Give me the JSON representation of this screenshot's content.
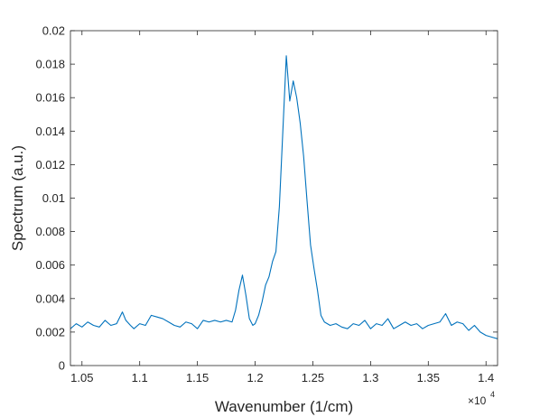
{
  "chart_data": {
    "type": "line",
    "title": "",
    "xlabel": "Wavenumber (1/cm)",
    "ylabel": "Spectrum (a.u.)",
    "x_exponent_base": "×10",
    "x_exponent_power": "4",
    "xlim": [
      1.04,
      1.41
    ],
    "ylim": [
      0,
      0.02
    ],
    "x_ticks": [
      1.05,
      1.1,
      1.15,
      1.2,
      1.25,
      1.3,
      1.35,
      1.4
    ],
    "x_tick_labels": [
      "1.05",
      "1.1",
      "1.15",
      "1.2",
      "1.25",
      "1.3",
      "1.35",
      "1.4"
    ],
    "y_ticks": [
      0,
      0.002,
      0.004,
      0.006,
      0.008,
      0.01,
      0.012,
      0.014,
      0.016,
      0.018,
      0.02
    ],
    "y_tick_labels": [
      "0",
      "0.002",
      "0.004",
      "0.006",
      "0.008",
      "0.01",
      "0.012",
      "0.014",
      "0.016",
      "0.018",
      "0.02"
    ],
    "grid": false,
    "line_color": "#0072BD",
    "series": [
      {
        "x": [
          1.04,
          1.045,
          1.05,
          1.055,
          1.06,
          1.065,
          1.07,
          1.075,
          1.08,
          1.085,
          1.088,
          1.092,
          1.095,
          1.1,
          1.105,
          1.11,
          1.115,
          1.12,
          1.125,
          1.13,
          1.135,
          1.14,
          1.145,
          1.15,
          1.155,
          1.16,
          1.165,
          1.17,
          1.175,
          1.18,
          1.183,
          1.186,
          1.189,
          1.192,
          1.195,
          1.198,
          1.2,
          1.203,
          1.206,
          1.209,
          1.212,
          1.215,
          1.218,
          1.221,
          1.224,
          1.227,
          1.23,
          1.233,
          1.236,
          1.239,
          1.242,
          1.245,
          1.248,
          1.251,
          1.254,
          1.257,
          1.26,
          1.265,
          1.27,
          1.275,
          1.28,
          1.285,
          1.29,
          1.295,
          1.3,
          1.305,
          1.31,
          1.315,
          1.32,
          1.325,
          1.33,
          1.335,
          1.34,
          1.345,
          1.35,
          1.355,
          1.36,
          1.365,
          1.37,
          1.375,
          1.38,
          1.385,
          1.39,
          1.395,
          1.4,
          1.405,
          1.41
        ],
        "y": [
          0.0022,
          0.0025,
          0.0023,
          0.0026,
          0.0024,
          0.0023,
          0.0027,
          0.0024,
          0.0025,
          0.0032,
          0.0027,
          0.0024,
          0.0022,
          0.0025,
          0.0024,
          0.003,
          0.0029,
          0.0028,
          0.0026,
          0.0024,
          0.0023,
          0.0026,
          0.0025,
          0.0022,
          0.0027,
          0.0026,
          0.0027,
          0.0026,
          0.0027,
          0.0026,
          0.0033,
          0.0045,
          0.0054,
          0.0042,
          0.0028,
          0.0024,
          0.0025,
          0.003,
          0.0038,
          0.0048,
          0.0053,
          0.0062,
          0.0068,
          0.0095,
          0.014,
          0.0185,
          0.0158,
          0.017,
          0.016,
          0.0145,
          0.0125,
          0.0098,
          0.0072,
          0.0058,
          0.0045,
          0.003,
          0.0026,
          0.0024,
          0.0025,
          0.0023,
          0.0022,
          0.0025,
          0.0024,
          0.0027,
          0.0022,
          0.0025,
          0.0024,
          0.0028,
          0.0022,
          0.0024,
          0.0026,
          0.0024,
          0.0025,
          0.0022,
          0.0024,
          0.0025,
          0.0026,
          0.0031,
          0.0024,
          0.0026,
          0.0025,
          0.0021,
          0.0024,
          0.002,
          0.0018,
          0.0017,
          0.0016
        ]
      }
    ]
  }
}
